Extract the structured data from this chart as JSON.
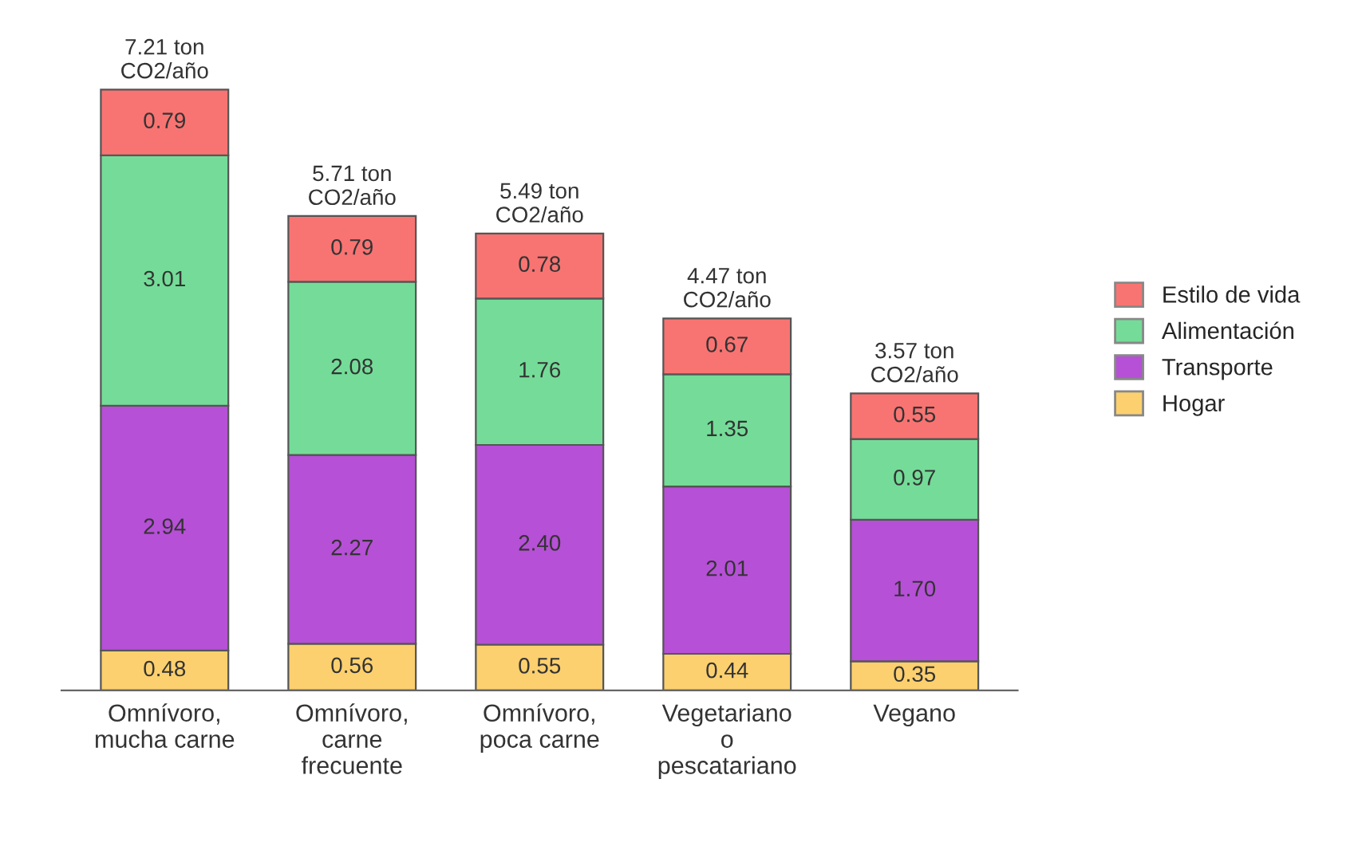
{
  "chart_data": {
    "type": "bar",
    "stacked": true,
    "legend": "right",
    "grid": false,
    "categories": [
      "Omnívoro,\nmucha carne",
      "Omnívoro,\ncarne\nfrecuente",
      "Omnívoro,\npoca carne",
      "Vegetariano\no\npescatariano",
      "Vegano"
    ],
    "series": [
      {
        "name": "Hogar",
        "color": "#fcd06e",
        "values": [
          0.48,
          0.56,
          0.55,
          0.44,
          0.35
        ],
        "value_labels": [
          "0.48",
          "0.56",
          "0.55",
          "0.44",
          "0.35"
        ]
      },
      {
        "name": "Transporte",
        "color": "#b650d6",
        "values": [
          2.94,
          2.27,
          2.4,
          2.01,
          1.7
        ],
        "value_labels": [
          "2.94",
          "2.27",
          "2.40",
          "2.01",
          "1.70"
        ]
      },
      {
        "name": "Alimentación",
        "color": "#74dc98",
        "values": [
          3.01,
          2.08,
          1.76,
          1.35,
          0.97
        ],
        "value_labels": [
          "3.01",
          "2.08",
          "1.76",
          "1.35",
          "0.97"
        ]
      },
      {
        "name": "Estilo de vida",
        "color": "#f87472",
        "values": [
          0.79,
          0.79,
          0.78,
          0.67,
          0.55
        ],
        "value_labels": [
          "0.79",
          "0.79",
          "0.78",
          "0.67",
          "0.55"
        ]
      }
    ],
    "totals": [
      "7.21 ton\nCO2/año",
      "5.71 ton\nCO2/año",
      "5.49 ton\nCO2/año",
      "4.47 ton\nCO2/año",
      "3.57 ton\nCO2/año"
    ]
  }
}
